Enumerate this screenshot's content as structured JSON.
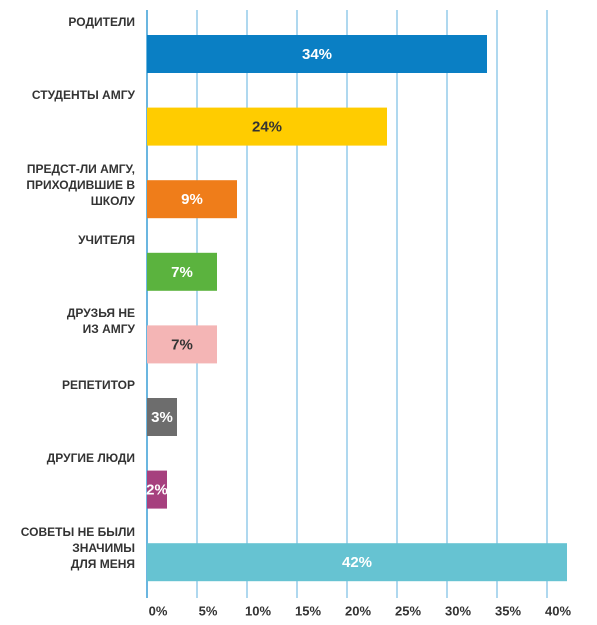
{
  "chart_data": {
    "type": "bar",
    "orientation": "horizontal",
    "categories": [
      "РОДИТЕЛИ",
      "СТУДЕНТЫ АМГУ",
      "ПРЕДСТ-ЛИ АМГУ,\nПРИХОДИВШИЕ В\nШКОЛУ",
      "УЧИТЕЛЯ",
      "ДРУЗЬЯ НЕ\nИЗ АМГУ",
      "РЕПЕТИТОР",
      "ДРУГИЕ ЛЮДИ",
      "СОВЕТЫ НЕ БЫЛИ\nЗНАЧИМЫ\nДЛЯ МЕНЯ"
    ],
    "values": [
      34,
      24,
      9,
      7,
      7,
      3,
      2,
      42
    ],
    "value_labels": [
      "34%",
      "24%",
      "9%",
      "7%",
      "7%",
      "3%",
      "2%",
      "42%"
    ],
    "colors": [
      "#0a7fc4",
      "#ffcc00",
      "#ef7d1a",
      "#5bb33e",
      "#f4b5b5",
      "#6d6d6d",
      "#a6407e",
      "#66c3d2"
    ],
    "xlim": [
      0,
      45
    ],
    "xticks": [
      {
        "value": 0,
        "label": "0%"
      },
      {
        "value": 5,
        "label": "5%"
      },
      {
        "value": 10,
        "label": "10%"
      },
      {
        "value": 15,
        "label": "15%"
      },
      {
        "value": 20,
        "label": "20%"
      },
      {
        "value": 25,
        "label": "25%"
      },
      {
        "value": 30,
        "label": "30%"
      },
      {
        "value": 35,
        "label": "35%"
      },
      {
        "value": 40,
        "label": "40%"
      }
    ],
    "grid": true
  }
}
